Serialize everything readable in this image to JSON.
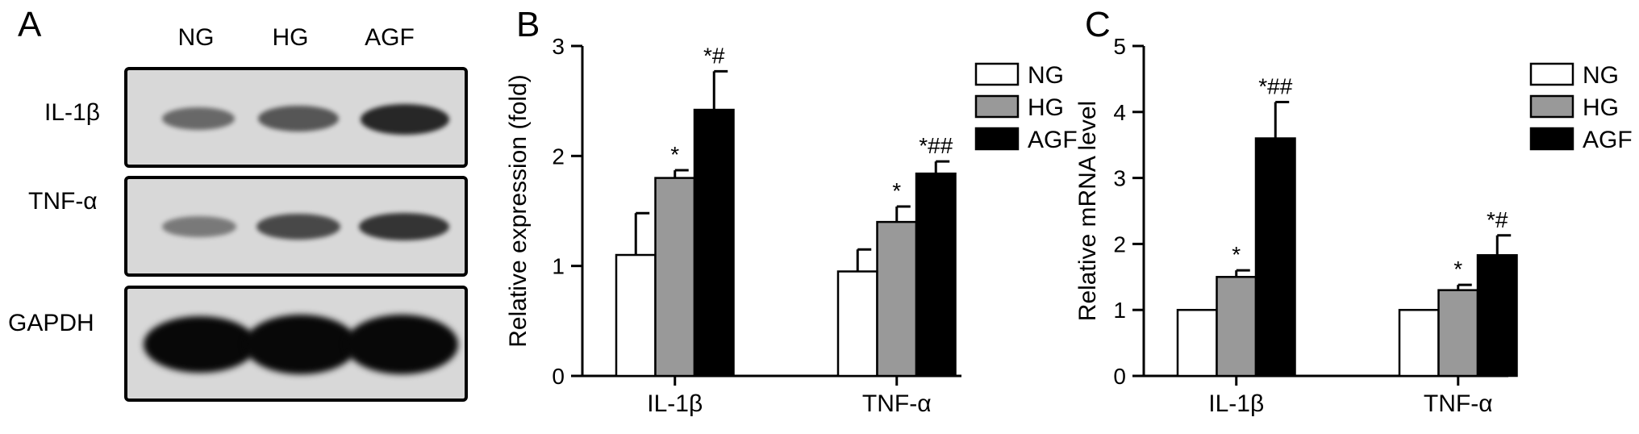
{
  "panels": {
    "a": "A",
    "b": "B",
    "c": "C"
  },
  "blot": {
    "lanes": [
      "NG",
      "HG",
      "AGF"
    ],
    "rows": [
      {
        "label": "IL-1β",
        "intensity": [
          0.55,
          0.65,
          0.85
        ]
      },
      {
        "label": "TNF-α",
        "intensity": [
          0.45,
          0.7,
          0.8
        ]
      },
      {
        "label": "GAPDH",
        "intensity": [
          1.0,
          1.0,
          1.0
        ]
      }
    ]
  },
  "chart_data": [
    {
      "type": "bar",
      "ylabel": "Relative expression (fold)",
      "ylim": [
        0,
        3
      ],
      "yticks": [
        "0",
        "1",
        "2",
        "3"
      ],
      "categories": [
        "IL-1β",
        "TNF-α"
      ],
      "legend": "top-right",
      "series": [
        {
          "name": "NG",
          "color": "#ffffff",
          "values": [
            1.1,
            0.95
          ],
          "errors": [
            0.38,
            0.2
          ],
          "annotations": [
            "",
            ""
          ]
        },
        {
          "name": "HG",
          "color": "#999999",
          "values": [
            1.8,
            1.4
          ],
          "errors": [
            0.07,
            0.14
          ],
          "annotations": [
            "*",
            "*"
          ]
        },
        {
          "name": "AGF",
          "color": "#000000",
          "values": [
            2.42,
            1.84
          ],
          "errors": [
            0.35,
            0.11
          ],
          "annotations": [
            "*#",
            "*##"
          ]
        }
      ]
    },
    {
      "type": "bar",
      "ylabel": "Relative mRNA level",
      "ylim": [
        0,
        5
      ],
      "yticks": [
        "0",
        "1",
        "2",
        "3",
        "4",
        "5"
      ],
      "categories": [
        "IL-1β",
        "TNF-α"
      ],
      "legend": "top-right",
      "series": [
        {
          "name": "NG",
          "color": "#ffffff",
          "values": [
            1.0,
            1.0
          ],
          "errors": [
            0,
            0
          ],
          "annotations": [
            "",
            ""
          ]
        },
        {
          "name": "HG",
          "color": "#999999",
          "values": [
            1.5,
            1.3
          ],
          "errors": [
            0.1,
            0.08
          ],
          "annotations": [
            "*",
            "*"
          ]
        },
        {
          "name": "AGF",
          "color": "#000000",
          "values": [
            3.6,
            1.83
          ],
          "errors": [
            0.55,
            0.3
          ],
          "annotations": [
            "*##",
            "*#"
          ]
        }
      ]
    }
  ]
}
